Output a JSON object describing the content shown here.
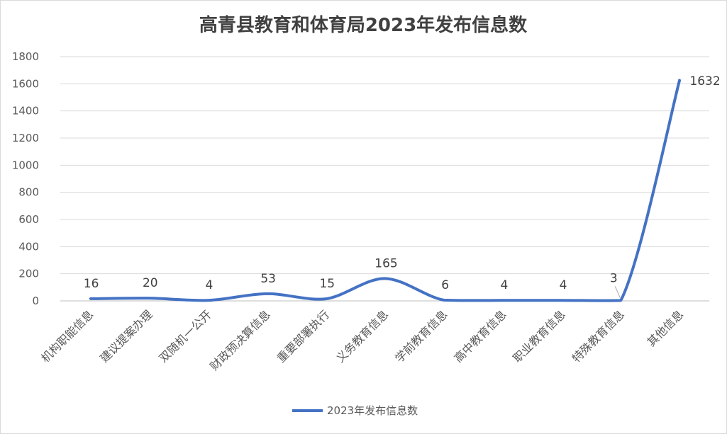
{
  "chart_data": {
    "type": "line",
    "title": "高青县教育和体育局2023年发布信息数",
    "categories": [
      "机构职能信息",
      "建议提案办理",
      "双随机一公开",
      "财政预决算信息",
      "重要部署执行",
      "义务教育信息",
      "学前教育信息",
      "高中教育信息",
      "职业教育信息",
      "特殊教育信息",
      "其他信息"
    ],
    "series": [
      {
        "name": "2023年发布信息数",
        "values": [
          16,
          20,
          4,
          53,
          15,
          165,
          6,
          4,
          4,
          3,
          1632
        ],
        "color": "#4472c4"
      }
    ],
    "ylim": [
      0,
      1800
    ],
    "yticks": [
      0,
      200,
      400,
      600,
      800,
      1000,
      1200,
      1400,
      1600,
      1800
    ],
    "grid": true,
    "smooth": true,
    "data_labels": true,
    "legend": "bottom"
  }
}
